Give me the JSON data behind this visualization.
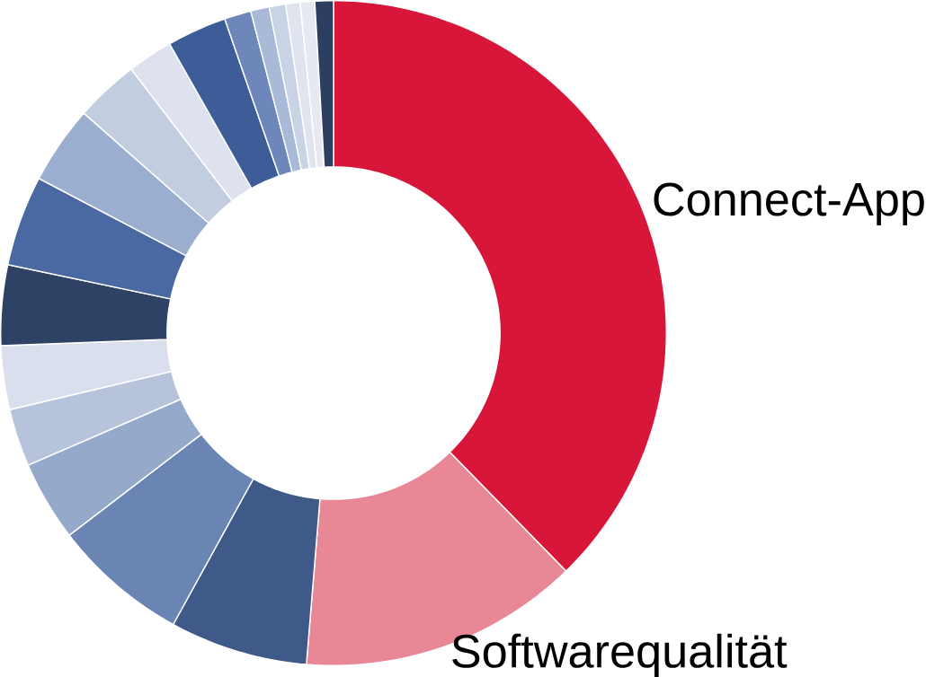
{
  "chart_data": {
    "type": "donut",
    "categories": [
      "Connect-App",
      "Softwarequalität",
      null,
      null,
      null,
      null,
      null,
      null,
      null,
      null,
      null,
      null,
      null,
      null,
      null,
      null,
      null,
      null,
      null
    ],
    "values": [
      37.7,
      13.6,
      6.7,
      6.6,
      3.9,
      2.8,
      3.1,
      3.9,
      4.4,
      3.8,
      3.1,
      2.2,
      2.9,
      1.3,
      0.9,
      0.8,
      0.7,
      0.7,
      0.9
    ],
    "colors": [
      "#d7163a",
      "#e88896",
      "#3f5a88",
      "#6a85b3",
      "#95a9cb",
      "#b6c3da",
      "#d9dfec",
      "#2e4266",
      "#4a69a3",
      "#9aaed0",
      "#c2cde0",
      "#dde2ee",
      "#3e5c98",
      "#6d87bb",
      "#a9b9d8",
      "#c9d3e6",
      "#dfe4ef",
      "#e6e9f2",
      "#2d3f60"
    ]
  }
}
